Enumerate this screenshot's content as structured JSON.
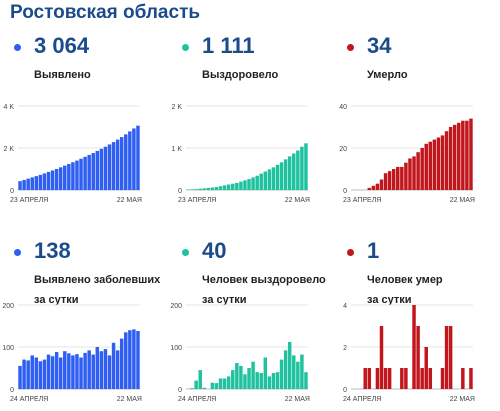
{
  "title": "Ростовская область",
  "panels": [
    {
      "big": "3 064",
      "label": "Выявлено",
      "label2": "",
      "color": "#2e5ef2"
    },
    {
      "big": "1 111",
      "label": "Выздоровело",
      "label2": "",
      "color": "#1ec29f"
    },
    {
      "big": "34",
      "label": "Умерло",
      "label2": "",
      "color": "#c0161c"
    },
    {
      "big": "138",
      "label": "Выявлено заболевших",
      "label2": "за сутки",
      "color": "#2e5ef2"
    },
    {
      "big": "40",
      "label": "Человек выздоровело",
      "label2": "за сутки",
      "color": "#1ec29f"
    },
    {
      "big": "1",
      "label": "Человек умер",
      "label2": "за сутки",
      "color": "#c0161c"
    }
  ],
  "chart_data": [
    {
      "type": "bar",
      "x_start": "23 АПРЕЛЯ",
      "x_end": "22 МАЯ",
      "yticks": [
        "0",
        "2 K",
        "4 K"
      ],
      "ylim": [
        0,
        4000
      ],
      "color": "#2e5ef2",
      "values": [
        420,
        480,
        540,
        600,
        660,
        720,
        790,
        860,
        930,
        1000,
        1080,
        1160,
        1240,
        1320,
        1400,
        1490,
        1580,
        1670,
        1760,
        1860,
        1960,
        2060,
        2170,
        2280,
        2400,
        2520,
        2650,
        2790,
        2930,
        3064
      ]
    },
    {
      "type": "bar",
      "x_start": "23 АПРЕЛЯ",
      "x_end": "22 МАЯ",
      "yticks": [
        "0",
        "1 K",
        "2 K"
      ],
      "ylim": [
        0,
        2000
      ],
      "color": "#1ec29f",
      "values": [
        10,
        15,
        20,
        30,
        40,
        50,
        60,
        70,
        90,
        110,
        130,
        150,
        170,
        200,
        230,
        260,
        300,
        340,
        390,
        440,
        490,
        540,
        600,
        660,
        730,
        800,
        870,
        940,
        1030,
        1111
      ]
    },
    {
      "type": "bar",
      "x_start": "23 АПРЕЛЯ",
      "x_end": "22 МАЯ",
      "yticks": [
        "0",
        "20",
        "40"
      ],
      "ylim": [
        0,
        40
      ],
      "color": "#c0161c",
      "values": [
        0,
        0,
        0,
        0,
        1,
        2,
        3,
        5,
        8,
        9,
        10,
        11,
        11,
        13,
        15,
        16,
        18,
        20,
        22,
        23,
        24,
        25,
        26,
        28,
        30,
        31,
        32,
        33,
        33,
        34
      ]
    },
    {
      "type": "bar",
      "x_start": "24 АПРЕЛЯ",
      "x_end": "22 МАЯ",
      "yticks": [
        "0",
        "100",
        "200"
      ],
      "ylim": [
        0,
        200
      ],
      "color": "#2e5ef2",
      "values": [
        55,
        70,
        68,
        80,
        75,
        66,
        70,
        82,
        78,
        88,
        75,
        90,
        85,
        80,
        83,
        75,
        86,
        92,
        82,
        100,
        90,
        95,
        80,
        110,
        92,
        120,
        135,
        140,
        142,
        138
      ]
    },
    {
      "type": "bar",
      "x_start": "24 АПРЕЛЯ",
      "x_end": "22 МАЯ",
      "yticks": [
        "0",
        "100",
        "200"
      ],
      "ylim": [
        0,
        200
      ],
      "color": "#1ec29f",
      "values": [
        0,
        2,
        20,
        45,
        3,
        0,
        15,
        14,
        25,
        25,
        30,
        45,
        62,
        55,
        35,
        50,
        65,
        40,
        38,
        75,
        30,
        38,
        40,
        70,
        92,
        112,
        80,
        65,
        82,
        40
      ]
    },
    {
      "type": "bar",
      "x_start": "24 АПРЕЛЯ",
      "x_end": "22 МАЯ",
      "yticks": [
        "0",
        "2",
        "4"
      ],
      "ylim": [
        0,
        4
      ],
      "color": "#c0161c",
      "values": [
        0,
        0,
        0,
        1,
        1,
        0,
        1,
        3,
        1,
        1,
        0,
        0,
        1,
        1,
        0,
        4,
        3,
        1,
        2,
        1,
        0,
        0,
        1,
        3,
        3,
        0,
        0,
        1,
        0,
        1
      ]
    }
  ]
}
